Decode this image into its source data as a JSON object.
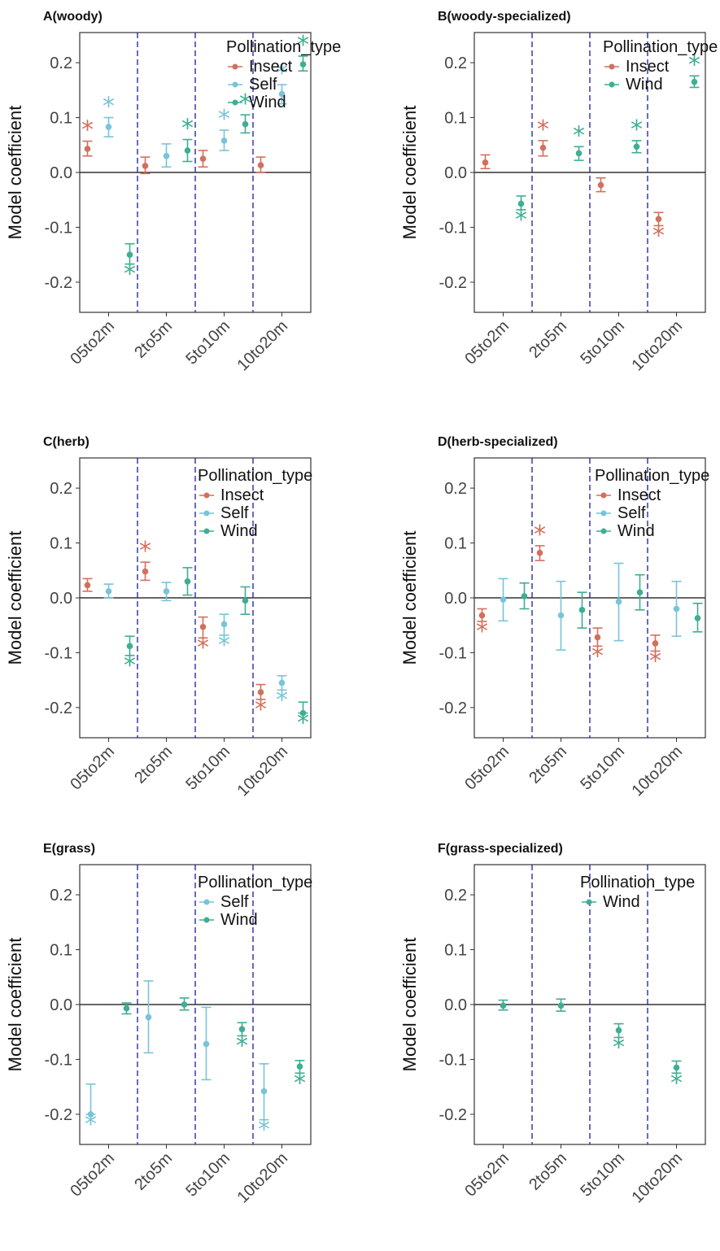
{
  "colors": {
    "Insect": "#d2705d",
    "Self": "#78c4d8",
    "Wind": "#3fae92",
    "divider": "#2a2aa8"
  },
  "chart_data": [
    {
      "type": "scatter",
      "title": "A(woody)",
      "ylabel": "Model coefficient",
      "categories": [
        "05to2m",
        "2to5m",
        "5to10m",
        "10to20m"
      ],
      "yticks": [
        "0.2",
        "0.1",
        "0.0",
        "-0.1",
        "-0.2"
      ],
      "ylim": [
        -0.255,
        0.255
      ],
      "legend_title": "Pollination_type",
      "legend": [
        "Insect",
        "Self",
        "Wind"
      ],
      "series": [
        {
          "name": "Insect",
          "points": [
            {
              "x": 0,
              "y": 0.043,
              "lo": 0.03,
              "hi": 0.057,
              "sig": true
            },
            {
              "x": 1,
              "y": 0.012,
              "lo": -0.002,
              "hi": 0.028,
              "sig": false
            },
            {
              "x": 2,
              "y": 0.025,
              "lo": 0.01,
              "hi": 0.04,
              "sig": false
            },
            {
              "x": 3,
              "y": 0.013,
              "lo": 0.0,
              "hi": 0.028,
              "sig": false
            }
          ]
        },
        {
          "name": "Self",
          "points": [
            {
              "x": 0,
              "y": 0.083,
              "lo": 0.065,
              "hi": 0.1,
              "sig": true
            },
            {
              "x": 1,
              "y": 0.03,
              "lo": 0.01,
              "hi": 0.052,
              "sig": false
            },
            {
              "x": 2,
              "y": 0.058,
              "lo": 0.04,
              "hi": 0.077,
              "sig": true
            },
            {
              "x": 3,
              "y": 0.143,
              "lo": 0.125,
              "hi": 0.16,
              "sig": true
            }
          ]
        },
        {
          "name": "Wind",
          "points": [
            {
              "x": 0,
              "y": -0.15,
              "lo": -0.167,
              "hi": -0.13,
              "sig": true
            },
            {
              "x": 1,
              "y": 0.04,
              "lo": 0.02,
              "hi": 0.06,
              "sig": true
            },
            {
              "x": 2,
              "y": 0.088,
              "lo": 0.072,
              "hi": 0.105,
              "sig": true
            },
            {
              "x": 3,
              "y": 0.197,
              "lo": 0.185,
              "hi": 0.212,
              "sig": true
            }
          ]
        }
      ]
    },
    {
      "type": "scatter",
      "title": "B(woody-specialized)",
      "ylabel": "Model coefficient",
      "categories": [
        "05to2m",
        "2to5m",
        "5to10m",
        "10to20m"
      ],
      "yticks": [
        "0.2",
        "0.1",
        "0.0",
        "-0.1",
        "-0.2"
      ],
      "ylim": [
        -0.255,
        0.255
      ],
      "legend_title": "Pollination_type",
      "legend": [
        "Insect",
        "Wind"
      ],
      "series": [
        {
          "name": "Insect",
          "points": [
            {
              "x": 0,
              "y": 0.018,
              "lo": 0.007,
              "hi": 0.032,
              "sig": false
            },
            {
              "x": 1,
              "y": 0.045,
              "lo": 0.03,
              "hi": 0.058,
              "sig": true
            },
            {
              "x": 2,
              "y": -0.023,
              "lo": -0.035,
              "hi": -0.01,
              "sig": false
            },
            {
              "x": 3,
              "y": -0.085,
              "lo": -0.097,
              "hi": -0.073,
              "sig": true
            }
          ]
        },
        {
          "name": "Wind",
          "points": [
            {
              "x": 0,
              "y": -0.057,
              "lo": -0.068,
              "hi": -0.043,
              "sig": true
            },
            {
              "x": 1,
              "y": 0.035,
              "lo": 0.022,
              "hi": 0.047,
              "sig": true
            },
            {
              "x": 2,
              "y": 0.047,
              "lo": 0.036,
              "hi": 0.058,
              "sig": true
            },
            {
              "x": 3,
              "y": 0.165,
              "lo": 0.155,
              "hi": 0.176,
              "sig": true
            }
          ]
        }
      ]
    },
    {
      "type": "scatter",
      "title": "C(herb)",
      "ylabel": "Model coefficient",
      "categories": [
        "05to2m",
        "2to5m",
        "5to10m",
        "10to20m"
      ],
      "yticks": [
        "0.2",
        "0.1",
        "0.0",
        "-0.1",
        "-0.2"
      ],
      "ylim": [
        -0.255,
        0.255
      ],
      "legend_title": "Pollination_type",
      "legend": [
        "Insect",
        "Self",
        "Wind"
      ],
      "series": [
        {
          "name": "Insect",
          "points": [
            {
              "x": 0,
              "y": 0.023,
              "lo": 0.012,
              "hi": 0.035,
              "sig": false
            },
            {
              "x": 1,
              "y": 0.048,
              "lo": 0.032,
              "hi": 0.065,
              "sig": true
            },
            {
              "x": 2,
              "y": -0.053,
              "lo": -0.073,
              "hi": -0.035,
              "sig": true
            },
            {
              "x": 3,
              "y": -0.172,
              "lo": -0.185,
              "hi": -0.158,
              "sig": true
            }
          ]
        },
        {
          "name": "Self",
          "points": [
            {
              "x": 0,
              "y": 0.012,
              "lo": 0.0,
              "hi": 0.025,
              "sig": false
            },
            {
              "x": 1,
              "y": 0.012,
              "lo": -0.005,
              "hi": 0.028,
              "sig": false
            },
            {
              "x": 2,
              "y": -0.048,
              "lo": -0.068,
              "hi": -0.03,
              "sig": true
            },
            {
              "x": 3,
              "y": -0.155,
              "lo": -0.168,
              "hi": -0.142,
              "sig": true
            }
          ]
        },
        {
          "name": "Wind",
          "points": [
            {
              "x": 0,
              "y": -0.088,
              "lo": -0.105,
              "hi": -0.07,
              "sig": true
            },
            {
              "x": 1,
              "y": 0.03,
              "lo": 0.005,
              "hi": 0.055,
              "sig": false
            },
            {
              "x": 2,
              "y": -0.005,
              "lo": -0.03,
              "hi": 0.02,
              "sig": false
            },
            {
              "x": 3,
              "y": -0.21,
              "lo": -0.21,
              "hi": -0.19,
              "sig": true
            }
          ]
        }
      ]
    },
    {
      "type": "scatter",
      "title": "D(herb-specialized)",
      "ylabel": "Model coefficient",
      "categories": [
        "05to2m",
        "2to5m",
        "5to10m",
        "10to20m"
      ],
      "yticks": [
        "0.2",
        "0.1",
        "0.0",
        "-0.1",
        "-0.2"
      ],
      "ylim": [
        -0.255,
        0.255
      ],
      "legend_title": "Pollination_type",
      "legend": [
        "Insect",
        "Self",
        "Wind"
      ],
      "series": [
        {
          "name": "Insect",
          "points": [
            {
              "x": 0,
              "y": -0.032,
              "lo": -0.043,
              "hi": -0.02,
              "sig": true
            },
            {
              "x": 1,
              "y": 0.082,
              "lo": 0.068,
              "hi": 0.095,
              "sig": true
            },
            {
              "x": 2,
              "y": -0.072,
              "lo": -0.088,
              "hi": -0.055,
              "sig": true
            },
            {
              "x": 3,
              "y": -0.083,
              "lo": -0.097,
              "hi": -0.068,
              "sig": true
            }
          ]
        },
        {
          "name": "Self",
          "points": [
            {
              "x": 0,
              "y": -0.003,
              "lo": -0.042,
              "hi": 0.035,
              "sig": false
            },
            {
              "x": 1,
              "y": -0.032,
              "lo": -0.095,
              "hi": 0.03,
              "sig": false
            },
            {
              "x": 2,
              "y": -0.007,
              "lo": -0.078,
              "hi": 0.063,
              "sig": false
            },
            {
              "x": 3,
              "y": -0.02,
              "lo": -0.07,
              "hi": 0.03,
              "sig": false
            }
          ]
        },
        {
          "name": "Wind",
          "points": [
            {
              "x": 0,
              "y": 0.003,
              "lo": -0.02,
              "hi": 0.027,
              "sig": false
            },
            {
              "x": 1,
              "y": -0.022,
              "lo": -0.055,
              "hi": 0.01,
              "sig": false
            },
            {
              "x": 2,
              "y": 0.01,
              "lo": -0.022,
              "hi": 0.042,
              "sig": false
            },
            {
              "x": 3,
              "y": -0.037,
              "lo": -0.062,
              "hi": -0.01,
              "sig": false
            }
          ]
        }
      ]
    },
    {
      "type": "scatter",
      "title": "E(grass)",
      "ylabel": "Model coefficient",
      "categories": [
        "05to2m",
        "2to5m",
        "5to10m",
        "10to20m"
      ],
      "yticks": [
        "0.2",
        "0.1",
        "0.0",
        "-0.1",
        "-0.2"
      ],
      "ylim": [
        -0.255,
        0.255
      ],
      "legend_title": "Pollination_type",
      "legend": [
        "Self",
        "Wind"
      ],
      "series": [
        {
          "name": "Self",
          "points": [
            {
              "x": 0,
              "y": -0.2,
              "lo": -0.2,
              "hi": -0.145,
              "sig": true
            },
            {
              "x": 1,
              "y": -0.023,
              "lo": -0.088,
              "hi": 0.043,
              "sig": false
            },
            {
              "x": 2,
              "y": -0.072,
              "lo": -0.137,
              "hi": -0.005,
              "sig": false
            },
            {
              "x": 3,
              "y": -0.158,
              "lo": -0.21,
              "hi": -0.108,
              "sig": true
            }
          ]
        },
        {
          "name": "Wind",
          "points": [
            {
              "x": 0,
              "y": -0.007,
              "lo": -0.017,
              "hi": 0.003,
              "sig": false
            },
            {
              "x": 1,
              "y": 0.0,
              "lo": -0.01,
              "hi": 0.012,
              "sig": false
            },
            {
              "x": 2,
              "y": -0.045,
              "lo": -0.057,
              "hi": -0.033,
              "sig": true
            },
            {
              "x": 3,
              "y": -0.113,
              "lo": -0.125,
              "hi": -0.102,
              "sig": true
            }
          ]
        }
      ]
    },
    {
      "type": "scatter",
      "title": "F(grass-specialized)",
      "ylabel": "Model coefficient",
      "categories": [
        "05to2m",
        "2to5m",
        "5to10m",
        "10to20m"
      ],
      "yticks": [
        "0.2",
        "0.1",
        "0.0",
        "-0.1",
        "-0.2"
      ],
      "ylim": [
        -0.255,
        0.255
      ],
      "legend_title": "Pollination_type",
      "legend": [
        "Wind"
      ],
      "series": [
        {
          "name": "Wind",
          "points": [
            {
              "x": 0,
              "y": -0.002,
              "lo": -0.01,
              "hi": 0.008,
              "sig": false
            },
            {
              "x": 1,
              "y": -0.002,
              "lo": -0.012,
              "hi": 0.01,
              "sig": false
            },
            {
              "x": 2,
              "y": -0.047,
              "lo": -0.06,
              "hi": -0.035,
              "sig": true
            },
            {
              "x": 3,
              "y": -0.115,
              "lo": -0.125,
              "hi": -0.103,
              "sig": true
            }
          ]
        }
      ]
    }
  ]
}
